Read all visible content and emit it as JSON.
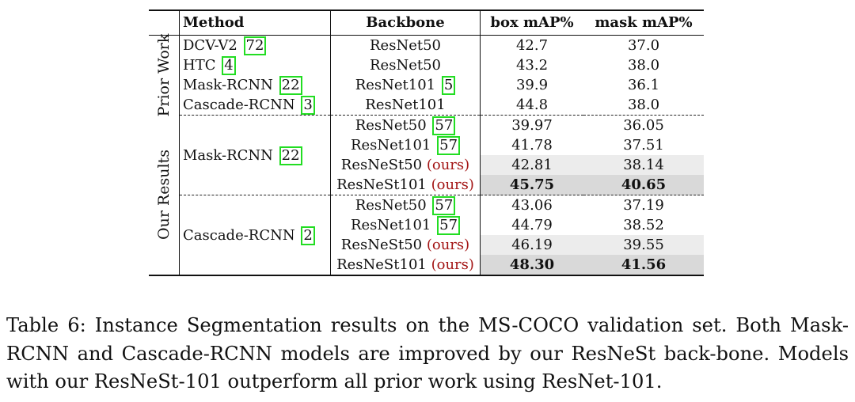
{
  "table": {
    "headers": {
      "method": "Method",
      "backbone": "Backbone",
      "box": "box mAP%",
      "mask": "mask mAP%"
    },
    "groups": {
      "prior_work": "Prior Work",
      "our_results": "Our Results"
    },
    "prior": [
      {
        "method": "DCV-V2",
        "cite": "72",
        "backbone": "ResNet50",
        "backbone_cite": "",
        "box": "42.7",
        "mask": "37.0"
      },
      {
        "method": "HTC",
        "cite": "4",
        "backbone": "ResNet50",
        "backbone_cite": "",
        "box": "43.2",
        "mask": "38.0"
      },
      {
        "method": "Mask-RCNN",
        "cite": "22",
        "backbone": "ResNet101",
        "backbone_cite": "5",
        "box": "39.9",
        "mask": "36.1"
      },
      {
        "method": "Cascade-RCNN",
        "cite": "3",
        "backbone": "ResNet101",
        "backbone_cite": "",
        "box": "44.8",
        "mask": "38.0"
      }
    ],
    "ours_mask": {
      "method": "Mask-RCNN",
      "cite": "22",
      "rows": [
        {
          "backbone": "ResNet50",
          "cite": "57",
          "box": "39.97",
          "mask": "36.05"
        },
        {
          "backbone": "ResNet101",
          "cite": "57",
          "box": "41.78",
          "mask": "37.51"
        },
        {
          "backbone": "ResNeSt50",
          "ours": "(ours)",
          "box": "42.81",
          "mask": "38.14"
        },
        {
          "backbone": "ResNeSt101",
          "ours": "(ours)",
          "box": "45.75",
          "mask": "40.65"
        }
      ]
    },
    "ours_cascade": {
      "method": "Cascade-RCNN",
      "cite": "2",
      "rows": [
        {
          "backbone": "ResNet50",
          "cite": "57",
          "box": "43.06",
          "mask": "37.19"
        },
        {
          "backbone": "ResNet101",
          "cite": "57",
          "box": "44.79",
          "mask": "38.52"
        },
        {
          "backbone": "ResNeSt50",
          "ours": "(ours)",
          "box": "46.19",
          "mask": "39.55"
        },
        {
          "backbone": "ResNeSt101",
          "ours": "(ours)",
          "box": "48.30",
          "mask": "41.56"
        }
      ]
    },
    "colors": {
      "citation_box": "#22dd22",
      "ours_text": "#a31515",
      "shade_light": "#ececec",
      "shade_dark": "#d9d9d9"
    }
  },
  "caption": "Table 6: Instance Segmentation results on the MS-COCO validation set. Both Mask-RCNN and Cascade-RCNN models are improved by our ResNeSt back-bone. Models with our ResNeSt-101 outperform all prior work using ResNet-101."
}
